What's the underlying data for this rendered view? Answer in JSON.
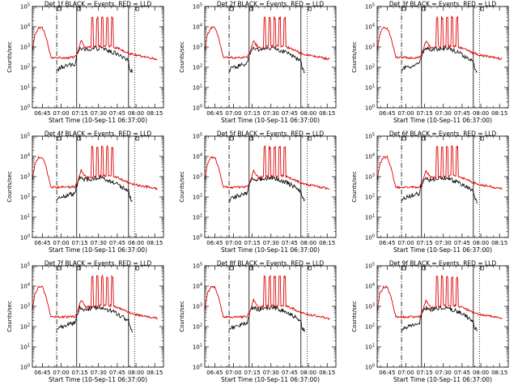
{
  "chart_data": {
    "type": "line",
    "grid_layout": "3x3",
    "ylabel": "Counts/sec",
    "xlabel": "Start Time (10-Sep-11 06:37:00)",
    "x_tick_labels": [
      "06:45",
      "07:00",
      "07:15",
      "07:30",
      "07:45",
      "08:00",
      "08:15"
    ],
    "x_tick_minutes": [
      8,
      23,
      38,
      53,
      68,
      83,
      98
    ],
    "xlim_minutes": [
      0,
      105
    ],
    "y_scale": "log",
    "y_tick_exponents": [
      0,
      1,
      2,
      3,
      4,
      5
    ],
    "ylim": [
      1,
      100000
    ],
    "series_names": [
      "Events (black)",
      "LLD (red)"
    ],
    "colors": {
      "events": "#000000",
      "lld": "#dd0000"
    },
    "markers_minutes": {
      "dash_dot": 19.5,
      "solid_1": 35.5,
      "solid_2": 77,
      "dotted": 82
    },
    "events_series_x": [
      0,
      6,
      14,
      19,
      19.5,
      20,
      22,
      26,
      30,
      34,
      35,
      38,
      42,
      48,
      55,
      60,
      66,
      72,
      77,
      78,
      80
    ],
    "events_series_y": [
      null,
      null,
      null,
      null,
      3,
      70,
      90,
      110,
      130,
      150,
      300,
      900,
      700,
      800,
      900,
      700,
      500,
      300,
      200,
      90,
      60
    ],
    "lld_series_x": [
      0,
      2,
      5,
      8,
      11,
      14,
      15,
      16,
      19,
      24,
      30,
      34,
      36,
      39,
      43,
      48,
      55,
      62,
      68,
      72,
      77,
      82,
      88,
      96,
      100
    ],
    "lld_series_y": [
      600,
      4000,
      9000,
      9000,
      3000,
      500,
      300,
      300,
      300,
      300,
      300,
      320,
      500,
      2000,
      900,
      1000,
      1100,
      1100,
      900,
      700,
      500,
      400,
      350,
      280,
      250
    ],
    "lld_spikes_minutes": [
      48,
      52,
      56,
      60,
      64
    ],
    "lld_spike_peak": 30000,
    "panels": [
      {
        "title": "Det 1f BLACK = Events, RED = LLD"
      },
      {
        "title": "Det 2f BLACK = Events, RED = LLD"
      },
      {
        "title": "Det 3f BLACK = Events, RED = LLD"
      },
      {
        "title": "Det 4f BLACK = Events, RED = LLD"
      },
      {
        "title": "Det 5f BLACK = Events, RED = LLD"
      },
      {
        "title": "Det 6f BLACK = Events, RED = LLD"
      },
      {
        "title": "Det 7f BLACK = Events, RED = LLD"
      },
      {
        "title": "Det 8f BLACK = Events, RED = LLD"
      },
      {
        "title": "Det 9f BLACK = Events, RED = LLD"
      }
    ]
  }
}
